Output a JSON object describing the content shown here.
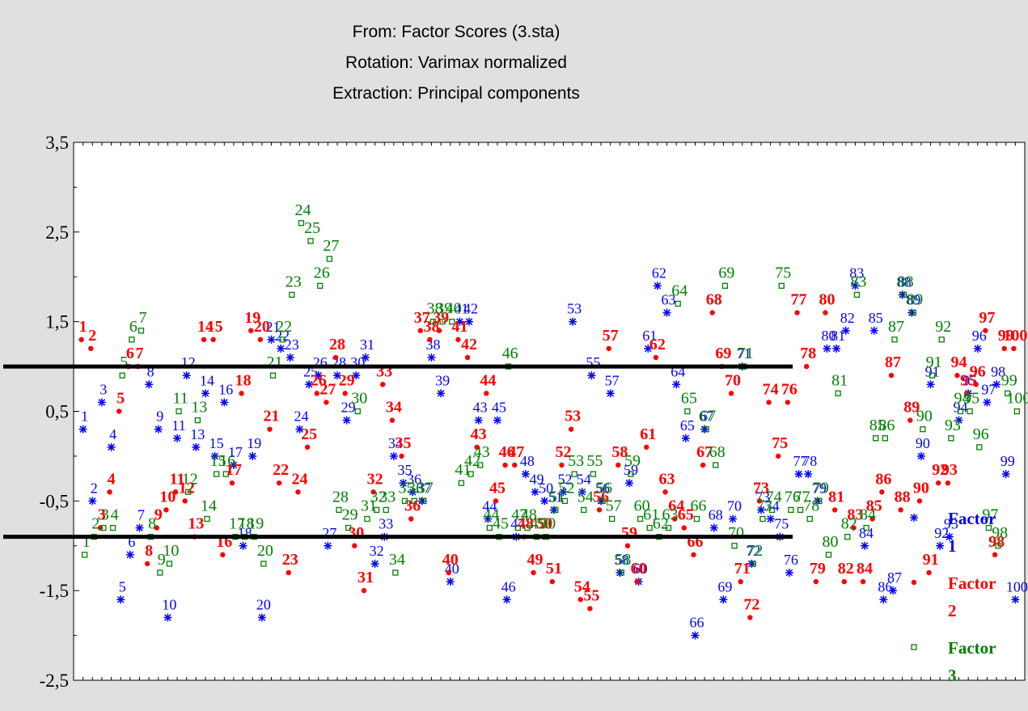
{
  "colors": {
    "factor1": "#0000ff",
    "factor2": "#ff0000",
    "factor3": "#008000",
    "background": "#e0e0e0",
    "plot_background": "#ffffff"
  },
  "chart_data": {
    "type": "scatter",
    "title_lines": [
      "From: Factor Scores (3.sta)",
      "Rotation: Varimax normalized",
      "Extraction: Principal components"
    ],
    "xlabel": "",
    "ylabel": "",
    "ylim": [
      -2.5,
      3.5
    ],
    "y_ticks": [
      3.5,
      2.5,
      1.5,
      0.5,
      -0.5,
      -1.5,
      -2.5
    ],
    "y_tick_labels": [
      "3,5",
      "2,5",
      "1,5",
      "0,5",
      "-0,5",
      "-1,5",
      "-2,5"
    ],
    "x_range": [
      0,
      101
    ],
    "reference_lines": [
      1.0,
      -0.9
    ],
    "legend_position": "right",
    "legend": [
      {
        "label_lines": [
          "Factor",
          "1"
        ],
        "marker": "asterisk"
      },
      {
        "label_lines": [
          "Factor",
          "2"
        ],
        "marker": "dot"
      },
      {
        "label_lines": [
          "Factor",
          "3"
        ],
        "marker": "square"
      }
    ],
    "series": [
      {
        "name": "Factor 1",
        "marker": "asterisk",
        "values": [
          0.3,
          -0.5,
          0.6,
          0.1,
          -1.6,
          -1.1,
          -0.8,
          0.8,
          0.3,
          -1.8,
          0.2,
          0.9,
          0.1,
          0.7,
          0.0,
          0.6,
          -0.1,
          -1.0,
          0.0,
          -1.8,
          1.3,
          1.2,
          1.1,
          0.3,
          0.8,
          0.9,
          -1.0,
          0.9,
          0.4,
          0.9,
          1.1,
          -1.2,
          -0.9,
          0.0,
          -0.3,
          -0.4,
          -0.5,
          1.1,
          0.7,
          -1.4,
          1.5,
          1.5,
          0.4,
          -0.7,
          0.4,
          -1.6,
          -0.9,
          -0.2,
          -0.4,
          -0.5,
          -0.6,
          -0.4,
          1.5,
          -0.4,
          0.9,
          -0.5,
          0.7,
          -1.3,
          -0.3,
          -1.4,
          1.2,
          1.9,
          1.6,
          0.8,
          0.2,
          -2.0,
          0.3,
          -0.8,
          -1.6,
          -0.7,
          1.0,
          -1.2,
          -0.6,
          -0.7,
          -0.9,
          -1.3,
          -0.2,
          -0.2,
          -0.5,
          1.2,
          1.2,
          1.4,
          1.9,
          -1.0,
          1.4,
          -1.6,
          -1.5,
          1.8,
          1.6,
          0.0,
          0.8,
          -1.0,
          -0.9,
          0.4,
          0.7,
          1.2,
          0.6,
          0.8,
          -0.2,
          -1.6
        ]
      },
      {
        "name": "Factor 2",
        "marker": "dot",
        "values": [
          1.3,
          1.2,
          -0.8,
          -0.4,
          0.5,
          1.0,
          1.0,
          -1.2,
          -0.8,
          -0.6,
          -0.4,
          -0.5,
          -0.9,
          1.3,
          1.3,
          -1.1,
          -0.3,
          0.7,
          1.4,
          1.3,
          0.3,
          -0.3,
          -1.3,
          -0.4,
          0.1,
          0.7,
          0.6,
          1.1,
          0.7,
          -1.0,
          -1.5,
          -0.4,
          0.8,
          0.4,
          0.0,
          -0.7,
          1.4,
          1.3,
          1.4,
          -1.3,
          1.3,
          1.1,
          0.1,
          0.7,
          -0.5,
          -0.1,
          -0.1,
          -0.9,
          -1.3,
          -0.9,
          -1.4,
          -0.1,
          0.3,
          -1.6,
          -1.7,
          -0.6,
          1.2,
          -0.1,
          -1.0,
          -1.4,
          0.1,
          1.1,
          -0.4,
          -0.7,
          -0.8,
          -1.1,
          -0.1,
          1.6,
          1.0,
          0.7,
          -1.4,
          -1.8,
          -0.5,
          0.6,
          0.0,
          0.6,
          1.6,
          1.0,
          -1.4,
          1.6,
          -0.6,
          -1.4,
          -0.8,
          -1.4,
          -0.7,
          -0.4,
          0.9,
          -0.6,
          0.4,
          -0.5,
          -1.3,
          -0.3,
          -0.3,
          0.9,
          0.7,
          0.8,
          1.4,
          -1.1,
          1.2,
          1.2
        ]
      },
      {
        "name": "Factor 3",
        "marker": "square",
        "values": [
          -1.1,
          -0.9,
          -0.8,
          -0.8,
          0.9,
          1.3,
          1.4,
          -0.9,
          -1.3,
          -1.2,
          0.5,
          -0.4,
          0.4,
          -0.7,
          -0.2,
          -0.2,
          -0.9,
          -0.9,
          -0.9,
          -1.2,
          0.9,
          1.3,
          1.8,
          2.6,
          2.4,
          1.9,
          2.2,
          -0.6,
          -0.8,
          0.5,
          -0.7,
          -0.6,
          -0.6,
          -1.3,
          -0.5,
          -0.5,
          -0.5,
          1.5,
          1.5,
          1.5,
          -0.3,
          -0.2,
          -0.1,
          -0.8,
          -0.9,
          1.0,
          -0.8,
          -0.8,
          -0.9,
          -0.9,
          -0.6,
          -0.5,
          -0.2,
          -0.6,
          -0.2,
          -0.5,
          -0.7,
          -1.3,
          -0.2,
          -0.7,
          -0.8,
          -0.9,
          -0.8,
          1.7,
          0.5,
          -0.7,
          0.3,
          -0.1,
          1.9,
          -1.0,
          1.0,
          -1.2,
          -0.7,
          -0.6,
          1.9,
          -0.6,
          -0.6,
          -0.7,
          -0.5,
          -1.1,
          0.7,
          -0.9,
          1.8,
          -0.8,
          0.2,
          0.2,
          1.3,
          1.8,
          1.6,
          0.3,
          0.9,
          1.3,
          0.2,
          0.5,
          0.5,
          0.1,
          -0.8,
          -1.0,
          0.7,
          0.5
        ]
      }
    ]
  }
}
